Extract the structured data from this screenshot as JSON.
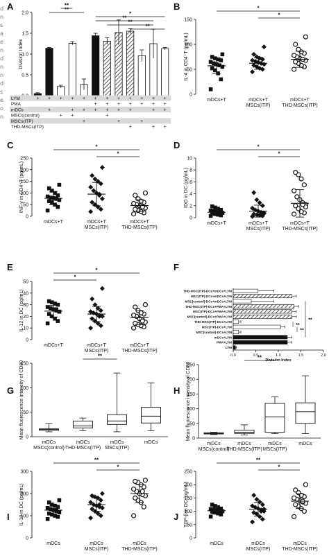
{
  "figure": {
    "margin_fragments": [
      "d",
      "n",
      "s",
      "a",
      "e",
      "n",
      "d",
      "n",
      "n",
      "d",
      "s",
      "e",
      "o",
      "n"
    ],
    "colors": {
      "ink": "#111111",
      "table_shade": "#d9d9d9",
      "bar_black": "#111111",
      "bar_white": "#ffffff"
    }
  },
  "chart_data": [
    {
      "panel": "A",
      "type": "bar",
      "ylabel": "Division Index",
      "ylim": [
        0,
        2.0
      ],
      "yticks": [
        "0.0",
        "0.5",
        "1.0",
        "1.5",
        "2.0"
      ],
      "values": [
        0.05,
        1.14,
        0.22,
        1.26,
        0.27,
        1.44,
        1.31,
        1.52,
        1.55,
        0.96,
        1.25,
        1.13
      ],
      "errors": [
        0.02,
        0.02,
        0.03,
        0.04,
        0.13,
        0.06,
        0.08,
        0.3,
        0.06,
        0.14,
        0.35,
        0.03
      ],
      "fills": [
        "black",
        "black",
        "white",
        "white",
        "white",
        "black",
        "hatch",
        "hatch",
        "hatch",
        "white",
        "white",
        "white"
      ],
      "significance": [
        {
          "from": 2,
          "to": 3,
          "label": "**"
        },
        {
          "from": 1,
          "to": 4,
          "label": "**"
        },
        {
          "from": 5,
          "to": 11,
          "label": "*"
        },
        {
          "from": 5,
          "to": 10,
          "label": "**"
        },
        {
          "from": 6,
          "to": 10,
          "label": "**"
        },
        {
          "from": 8,
          "to": 11,
          "label": "**"
        }
      ],
      "table": {
        "rows": [
          {
            "label": "LYM",
            "cells": [
              "+",
              "+",
              "+",
              "+",
              "+",
              "+",
              "+",
              "+",
              "+",
              "+",
              "+",
              "+"
            ]
          },
          {
            "label": "PMA",
            "cells": [
              "",
              "",
              "",
              "",
              "",
              "+",
              "+",
              "+",
              "+",
              "+",
              "+",
              "+"
            ]
          },
          {
            "label": "mDCs",
            "cells": [
              "",
              "+",
              "",
              "+",
              "+",
              "+",
              "+",
              "+",
              "+",
              "",
              "+",
              "+"
            ]
          },
          {
            "label": "MSCs(control)",
            "cells": [
              "",
              "",
              "+",
              "+",
              "",
              "",
              "+",
              "",
              "",
              "",
              "",
              ""
            ]
          },
          {
            "label": "MSCs(ITP)",
            "cells": [
              "",
              "",
              "",
              "",
              "+",
              "",
              "",
              "+",
              "",
              "+",
              "",
              ""
            ]
          },
          {
            "label": "THD-MSCs(ITP)",
            "cells": [
              "",
              "",
              "",
              "",
              "",
              "",
              "",
              "",
              "+",
              "",
              "+",
              "+"
            ]
          }
        ]
      }
    },
    {
      "panel": "B",
      "type": "scatter",
      "ylabel": "IL-4 in CD4⁺T (pg/mL)",
      "ylim": [
        0,
        150
      ],
      "yticks": [
        "0",
        "50",
        "100",
        "150"
      ],
      "categories": [
        "mDCs+T",
        "mDCs+T\nMSCs(ITP)",
        "mDCs+T\nTHD-MSCs(ITP)"
      ],
      "markers": [
        "square",
        "diamond",
        "circle"
      ],
      "series": [
        {
          "values": [
            10,
            30,
            42,
            48,
            52,
            55,
            58,
            60,
            62,
            65,
            68,
            70,
            72,
            75,
            80,
            58
          ],
          "mean": 57,
          "sd": 16
        },
        {
          "values": [
            45,
            50,
            52,
            55,
            58,
            60,
            62,
            64,
            66,
            68,
            70,
            72,
            75,
            80,
            95,
            62
          ],
          "mean": 62,
          "sd": 12
        },
        {
          "values": [
            50,
            55,
            58,
            62,
            65,
            68,
            70,
            72,
            75,
            78,
            82,
            85,
            90,
            100,
            115,
            70
          ],
          "mean": 70,
          "sd": 16
        }
      ],
      "significance": [
        {
          "from": 0,
          "to": 2,
          "label": "*"
        },
        {
          "from": 1,
          "to": 2,
          "label": "*"
        }
      ]
    },
    {
      "panel": "C",
      "type": "scatter",
      "ylabel": "INF-γ in CD4⁺T (pg/mL)",
      "ylim": [
        0,
        250
      ],
      "yticks": [
        "0",
        "50",
        "100",
        "150",
        "200",
        "250"
      ],
      "categories": [
        "mDCs+T",
        "mDCs+T\nMSCs(ITP)",
        "mDCs+T\nTHD-MSCs(ITP)"
      ],
      "markers": [
        "square",
        "diamond",
        "circle"
      ],
      "series": [
        {
          "values": [
            25,
            40,
            50,
            60,
            65,
            70,
            75,
            78,
            80,
            85,
            90,
            100,
            110,
            120,
            135,
            75
          ],
          "mean": 77,
          "sd": 28
        },
        {
          "values": [
            20,
            30,
            40,
            50,
            60,
            75,
            90,
            100,
            110,
            125,
            140,
            150,
            160,
            175,
            210,
            95
          ],
          "mean": 95,
          "sd": 50
        },
        {
          "values": [
            10,
            15,
            20,
            25,
            30,
            35,
            40,
            45,
            50,
            55,
            60,
            65,
            75,
            90,
            100,
            40
          ],
          "mean": 46,
          "sd": 25
        }
      ],
      "significance": [
        {
          "from": 0,
          "to": 2,
          "label": "*"
        },
        {
          "from": 1,
          "to": 2,
          "label": "*"
        }
      ]
    },
    {
      "panel": "D",
      "type": "scatter",
      "ylabel": "IDO in DC (pg/mL)",
      "ylim": [
        0,
        10
      ],
      "yticks": [
        "0",
        "2",
        "4",
        "6",
        "8",
        "10"
      ],
      "categories": [
        "mDCs+T",
        "mDCs+T\nMSCs(ITP)",
        "mDCs+T\nTHD-MSCs(ITP)"
      ],
      "markers": [
        "square",
        "diamond",
        "circle"
      ],
      "series": [
        {
          "values": [
            0.3,
            0.4,
            0.5,
            0.6,
            0.7,
            0.8,
            0.9,
            1.0,
            1.1,
            1.2,
            1.3,
            1.5,
            1.7,
            1.9,
            0.8,
            0.6
          ],
          "mean": 0.9,
          "sd": 0.4
        },
        {
          "values": [
            0.2,
            0.3,
            0.4,
            0.5,
            0.6,
            0.7,
            0.9,
            1.1,
            1.3,
            1.6,
            2.0,
            2.5,
            3.0,
            4.2,
            0.8,
            0.5
          ],
          "mean": 1.1,
          "sd": 1.0
        },
        {
          "values": [
            0.6,
            0.8,
            1.0,
            1.5,
            2.0,
            2.2,
            2.5,
            3.0,
            3.5,
            4.5,
            5.5,
            6.5,
            7.2,
            7.6,
            1.8,
            2.2
          ],
          "mean": 2.4,
          "sd": 2.3
        }
      ],
      "significance": [
        {
          "from": 0,
          "to": 2,
          "label": "*"
        },
        {
          "from": 1,
          "to": 2,
          "label": "*"
        }
      ]
    },
    {
      "panel": "E",
      "type": "scatter",
      "ylabel": "IL-12 in DC (pg/mL)",
      "ylim": [
        0,
        50
      ],
      "yticks": [
        "0",
        "10",
        "20",
        "30",
        "40",
        "50"
      ],
      "categories": [
        "mDCs+T",
        "mDCs+T\nMSCs(ITP)",
        "mDCs+T\nTHD-MSCs(ITP)"
      ],
      "markers": [
        "square",
        "diamond",
        "circle"
      ],
      "series": [
        {
          "values": [
            14,
            16,
            18,
            20,
            22,
            24,
            25,
            26,
            27,
            28,
            30,
            31,
            32,
            33,
            24,
            26
          ],
          "mean": 24.5,
          "sd": 5
        },
        {
          "values": [
            10,
            12,
            14,
            16,
            18,
            20,
            21,
            22,
            23,
            24,
            25,
            27,
            30,
            35,
            44,
            20
          ],
          "mean": 22,
          "sd": 6.5
        },
        {
          "values": [
            10,
            11,
            12,
            13,
            14,
            15,
            17,
            18,
            20,
            21,
            22,
            23,
            25,
            28,
            30,
            16
          ],
          "mean": 19,
          "sd": 6
        }
      ],
      "significance": [
        {
          "from": 0,
          "to": 2,
          "label": "*"
        },
        {
          "from": 0,
          "to": 1,
          "label": "*"
        }
      ]
    },
    {
      "panel": "F",
      "type": "bar",
      "orientation": "horizontal",
      "xlabel": "Division Index",
      "xlim": [
        0,
        2.0
      ],
      "xticks": [
        "0.0",
        "0.5",
        "1.0",
        "1.5",
        "2.0"
      ],
      "categories": [
        "THD-MSC(ITP)-DCs+mDCs+LYM",
        "MSC(ITP)-DCs+mDCs+LYM",
        "MSC(control)-DCs+mDCs+LYM",
        "THD-MSC(ITP)-DCs+PMA+LYM",
        "MSC(ITP)-DCs+PMA+LYM",
        "MSC(control)-DCs+PMA+LYM",
        "THD-MSC(ITP)-DCs+LYM",
        "MSC(ITP)-DCs+LYM",
        "MSC(control)-DCs+LYM",
        "mDCs+LYM",
        "PMA+LYM",
        "LYM"
      ],
      "values": [
        0.55,
        1.3,
        0.4,
        1.35,
        1.3,
        1.3,
        0.12,
        1.05,
        0.12,
        1.2,
        1.2,
        0.05
      ],
      "errors": [
        0.35,
        0.1,
        0.5,
        0.1,
        0.1,
        0.1,
        0.05,
        0.1,
        0.05,
        0.1,
        0.1,
        0.02
      ],
      "fills": [
        "white",
        "hatch",
        "white",
        "hatch",
        "hatch",
        "hatch",
        "white",
        "white",
        "white",
        "black",
        "black",
        "black"
      ],
      "significance": [
        {
          "from": 0,
          "to": 10,
          "label": "**"
        },
        {
          "from": 2,
          "to": 9,
          "label": "**"
        },
        {
          "from": 6,
          "to": 7,
          "label": "**"
        },
        {
          "from": 7,
          "to": 8,
          "label": "**"
        }
      ]
    },
    {
      "panel": "G",
      "type": "box",
      "ylabel": "Mean fluorescence intensity of CD80",
      "ylim": [
        0,
        150
      ],
      "yticks": [
        "0",
        "50",
        "100",
        "150"
      ],
      "categories": [
        "mDCs\nMSCs(control)",
        "mDCs\nTHD-MSCs(ITP)",
        "mDCs\nMSCs(ITP)",
        "mDCs"
      ],
      "boxes": [
        {
          "min": 10,
          "q1": 13,
          "median": 15,
          "q3": 16,
          "max": 27
        },
        {
          "min": 12,
          "q1": 18,
          "median": 22,
          "q3": 32,
          "max": 38
        },
        {
          "min": 10,
          "q1": 25,
          "median": 32,
          "q3": 45,
          "max": 130
        },
        {
          "min": 12,
          "q1": 28,
          "median": 42,
          "q3": 60,
          "max": 110
        }
      ],
      "significance": [
        {
          "from": 1,
          "to": 2,
          "label": "**"
        }
      ]
    },
    {
      "panel": "H",
      "type": "box",
      "ylabel": "Mean fluorescence intensity of CD86",
      "ylim": [
        0,
        250
      ],
      "yticks": [
        "0",
        "50",
        "100",
        "150",
        "200",
        "250"
      ],
      "categories": [
        "mDCs\nMSCs(control)",
        "mDCs\nTHD-MSCs(ITP)",
        "mDCs\nMSCs(ITP)",
        "mDCs"
      ],
      "boxes": [
        {
          "min": 12,
          "q1": 14,
          "median": 16,
          "q3": 18,
          "max": 20
        },
        {
          "min": 10,
          "q1": 16,
          "median": 20,
          "q3": 27,
          "max": 45
        },
        {
          "min": 15,
          "q1": 20,
          "median": 72,
          "q3": 118,
          "max": 140
        },
        {
          "min": 15,
          "q1": 50,
          "median": 90,
          "q3": 120,
          "max": 212
        }
      ],
      "significance": [
        {
          "from": 1,
          "to": 2,
          "label": "**"
        }
      ]
    },
    {
      "panel": "I",
      "type": "scatter",
      "ylabel": "IL-10 in DC (pg/mL)",
      "ylim": [
        0,
        300
      ],
      "yticks": [
        "0",
        "100",
        "200",
        "300"
      ],
      "categories": [
        "mDCs",
        "mDCs\nMSCs(ITP)",
        "mDCs\nTHD-MSCs(ITP)"
      ],
      "markers": [
        "square",
        "diamond",
        "circle"
      ],
      "series": [
        {
          "values": [
            85,
            95,
            100,
            105,
            110,
            115,
            120,
            125,
            130,
            135,
            140,
            145,
            150,
            160,
            170,
            125
          ],
          "mean": 125,
          "sd": 22
        },
        {
          "values": [
            90,
            100,
            110,
            120,
            130,
            135,
            140,
            145,
            150,
            160,
            170,
            180,
            185,
            190,
            200,
            150
          ],
          "mean": 150,
          "sd": 30
        },
        {
          "values": [
            100,
            140,
            160,
            170,
            180,
            190,
            195,
            200,
            210,
            220,
            230,
            240,
            250,
            255,
            260,
            210
          ],
          "mean": 200,
          "sd": 40
        }
      ],
      "significance": [
        {
          "from": 0,
          "to": 2,
          "label": "**"
        },
        {
          "from": 1,
          "to": 2,
          "label": "*"
        }
      ]
    },
    {
      "panel": "J",
      "type": "scatter",
      "ylabel": "TGF-β in DC (pg/mL)",
      "ylim": [
        0,
        250
      ],
      "yticks": [
        "0",
        "50",
        "100",
        "150",
        "200",
        "250"
      ],
      "categories": [
        "mDCs",
        "mDCs\nMSCs(ITP)",
        "mDCs\nTHD-MSCs(ITP)"
      ],
      "markers": [
        "square",
        "diamond",
        "circle"
      ],
      "series": [
        {
          "values": [
            80,
            88,
            92,
            95,
            98,
            100,
            102,
            104,
            106,
            108,
            110,
            115,
            120,
            125,
            100,
            96
          ],
          "mean": 102,
          "sd": 12
        },
        {
          "values": [
            60,
            70,
            80,
            90,
            95,
            100,
            105,
            110,
            115,
            120,
            125,
            135,
            145,
            160,
            108,
            100
          ],
          "mean": 108,
          "sd": 26
        },
        {
          "values": [
            80,
            100,
            110,
            120,
            125,
            130,
            135,
            140,
            145,
            150,
            155,
            160,
            170,
            180,
            200,
            138
          ],
          "mean": 138,
          "sd": 28
        }
      ],
      "significance": [
        {
          "from": 0,
          "to": 2,
          "label": "**"
        },
        {
          "from": 1,
          "to": 2,
          "label": "*"
        }
      ]
    }
  ]
}
